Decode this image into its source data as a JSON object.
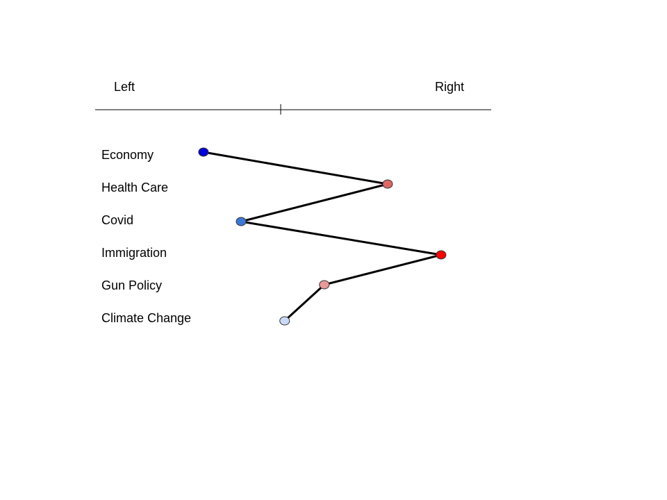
{
  "axis": {
    "left_label": "Left",
    "right_label": "Right"
  },
  "issues": [
    {
      "label": "Economy",
      "position": -0.39,
      "color": "#0000dd"
    },
    {
      "label": "Health Care",
      "position": 0.54,
      "color": "#e06666"
    },
    {
      "label": "Covid",
      "position": -0.2,
      "color": "#3c78d8"
    },
    {
      "label": "Immigration",
      "position": 0.81,
      "color": "#ff0000"
    },
    {
      "label": "Gun Policy",
      "position": 0.22,
      "color": "#ea9999"
    },
    {
      "label": "Climate Change",
      "position": 0.02,
      "color": "#c9daf8"
    }
  ],
  "scale": {
    "min": -1,
    "max": 1,
    "center": 0
  }
}
